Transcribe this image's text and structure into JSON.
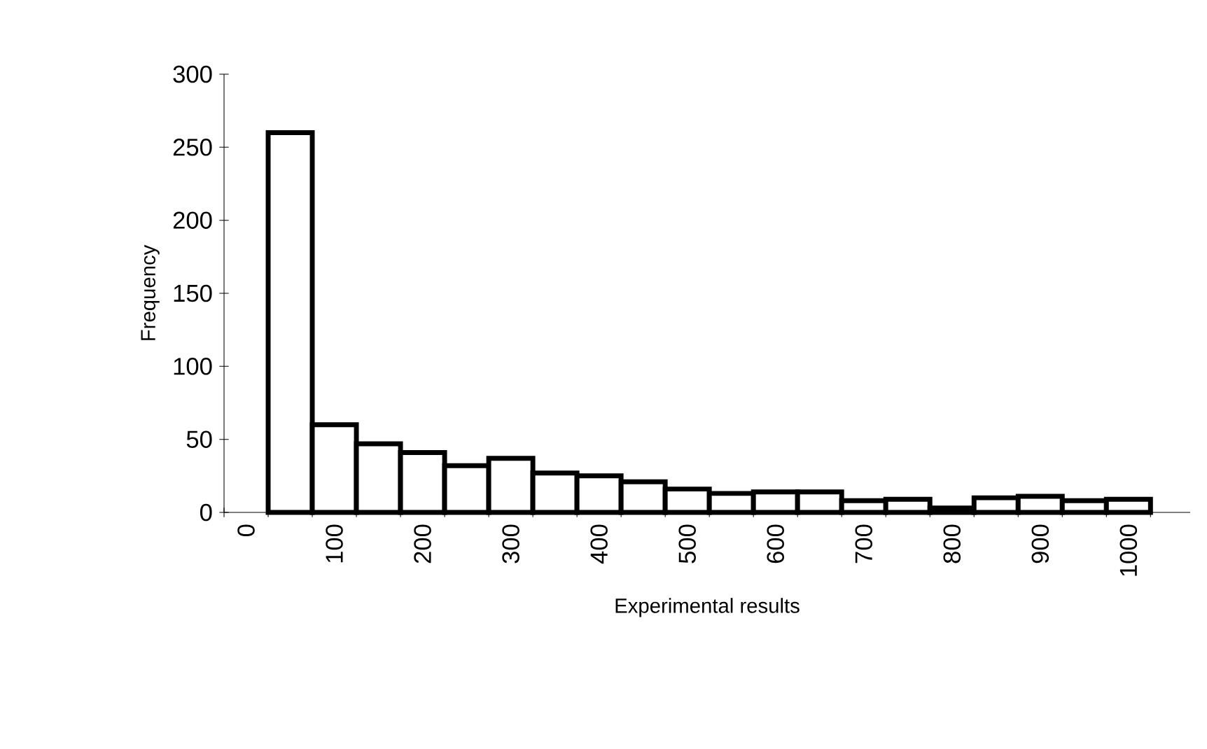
{
  "chart_data": {
    "type": "bar",
    "xlabel": "Experimental results",
    "ylabel": "Frequency",
    "categories": [
      "0",
      null,
      "100",
      null,
      "200",
      null,
      "300",
      null,
      "400",
      null,
      "500",
      null,
      "600",
      null,
      "700",
      null,
      "800",
      null,
      "900",
      null,
      "1000"
    ],
    "values": [
      null,
      260,
      60,
      47,
      41,
      32,
      37,
      27,
      25,
      21,
      16,
      13,
      14,
      14,
      8,
      9,
      3,
      10,
      11,
      8,
      9
    ],
    "color": "#ffffff",
    "ylim": [
      0,
      300
    ],
    "yticks": [
      0,
      50,
      100,
      150,
      200,
      250,
      300
    ],
    "grid": false
  }
}
